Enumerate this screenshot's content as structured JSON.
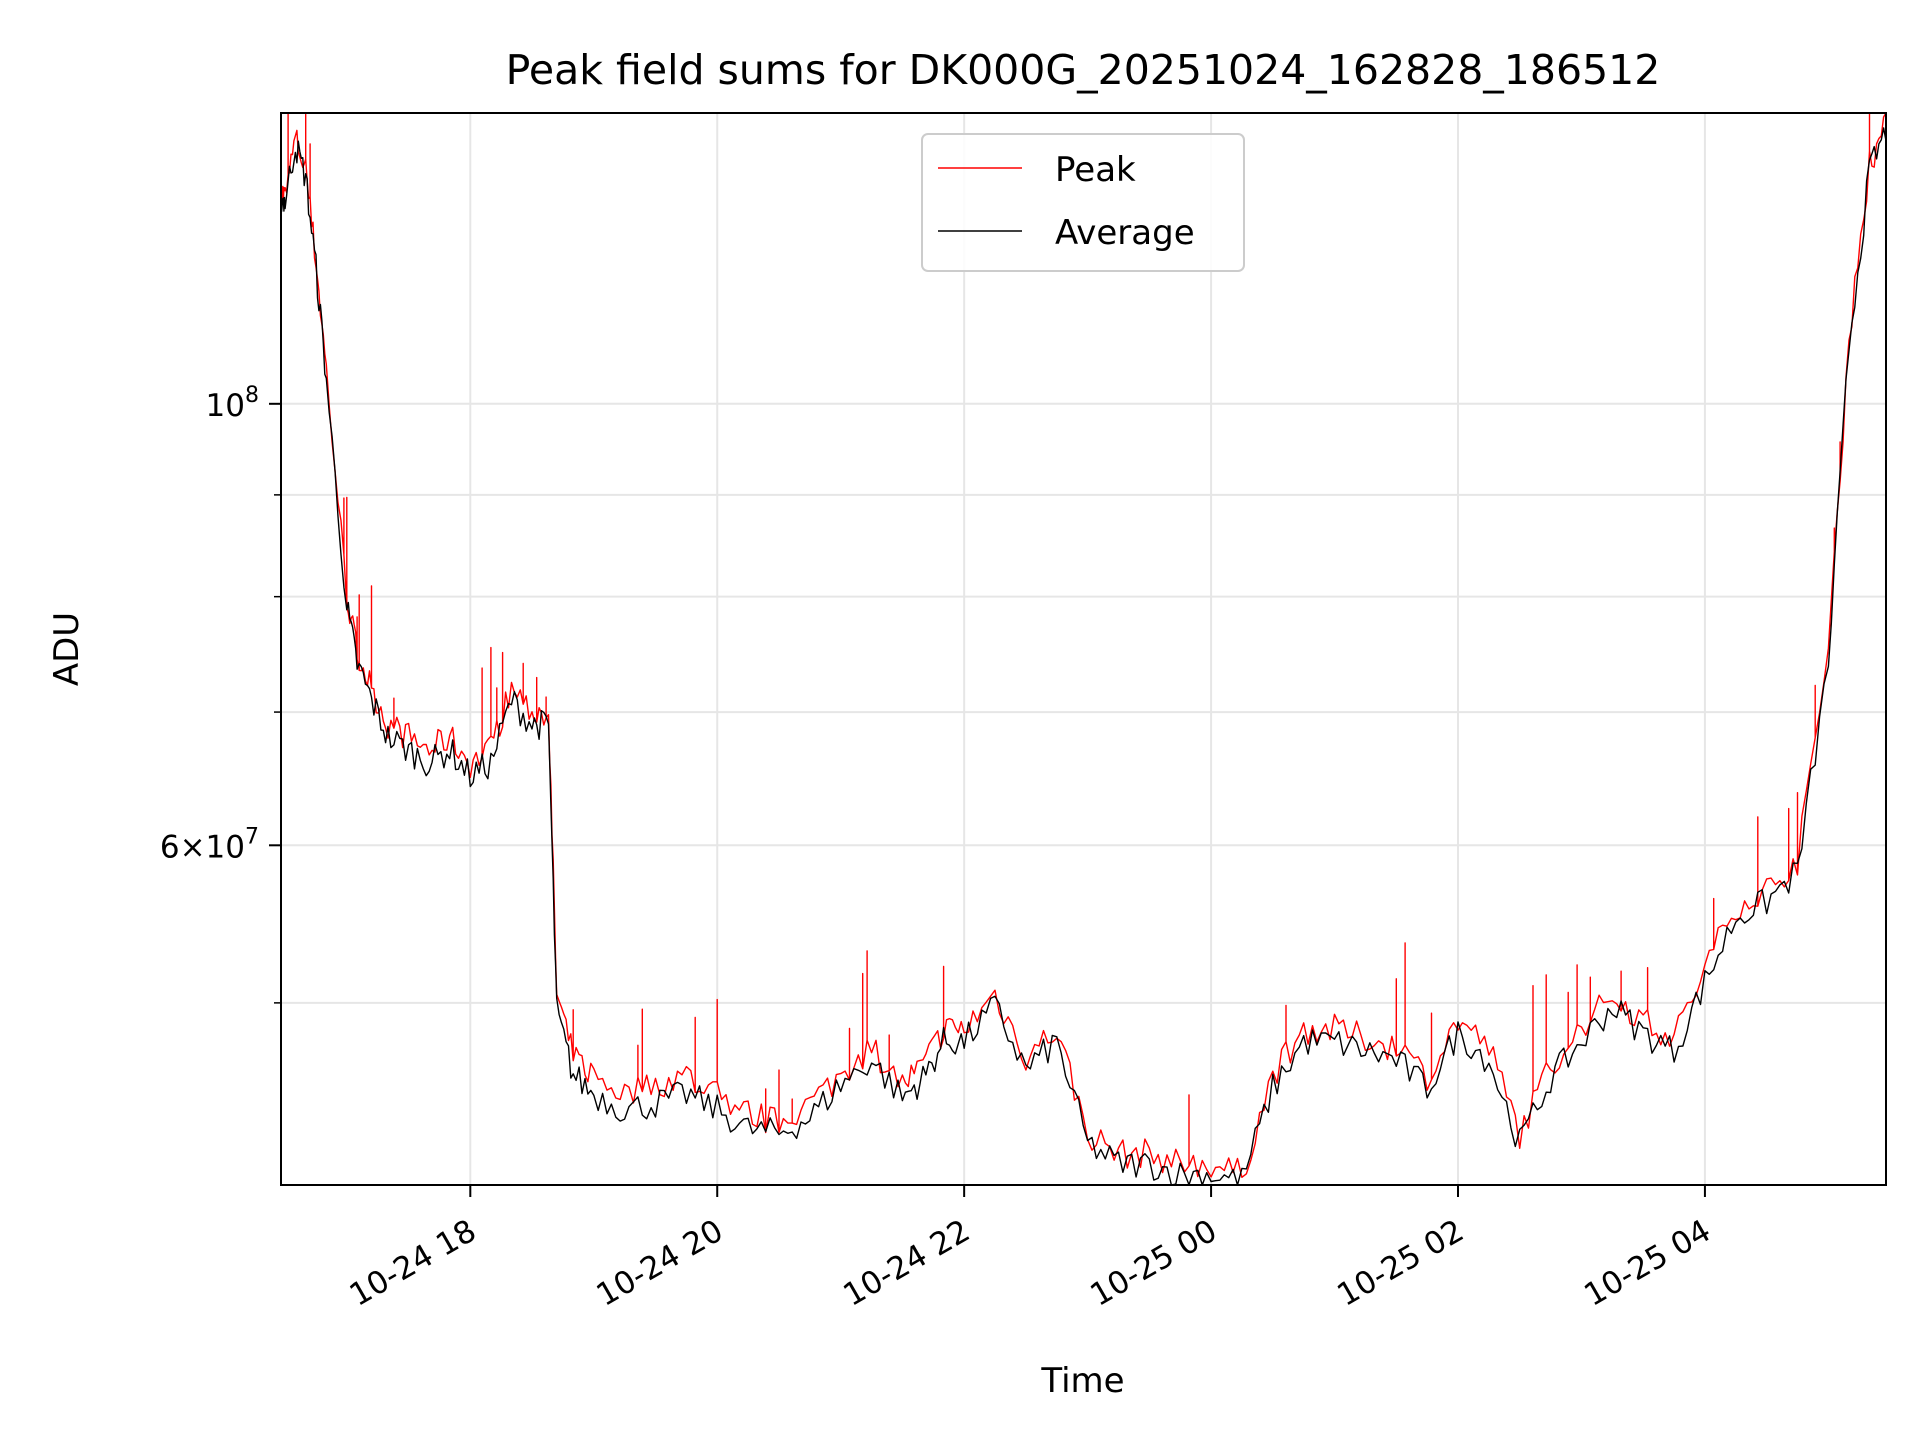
{
  "chart_data": {
    "type": "line",
    "title": "Peak field sums for DK000G_20251024_162828_186512",
    "xlabel": "Time",
    "ylabel": "ADU",
    "y_scale": "log",
    "xlim": [
      "2025-10-24 16:28",
      "2025-10-25 05:28"
    ],
    "ylim": [
      40500000,
      140000000
    ],
    "grid": true,
    "legend_position": "upper center",
    "x_ticks": [
      "10-24 18",
      "10-24 20",
      "10-24 22",
      "10-25 00",
      "10-25 02",
      "10-25 04"
    ],
    "y_tick_labels": [
      {
        "value": 100000000,
        "base": "10",
        "exp": "8"
      },
      {
        "value": 60000000,
        "mantissa": "6×",
        "base": "10",
        "exp": "7"
      }
    ],
    "y_minor_ticks": [
      50000000,
      70000000,
      80000000,
      90000000
    ],
    "x": [
      "2025-10-24 16:28",
      "2025-10-24 16:30",
      "2025-10-24 16:35",
      "2025-10-24 16:40",
      "2025-10-24 16:45",
      "2025-10-24 16:50",
      "2025-10-24 17:00",
      "2025-10-24 17:05",
      "2025-10-24 17:12",
      "2025-10-24 17:20",
      "2025-10-24 17:30",
      "2025-10-24 17:40",
      "2025-10-24 17:50",
      "2025-10-24 18:00",
      "2025-10-24 18:10",
      "2025-10-24 18:20",
      "2025-10-24 18:30",
      "2025-10-24 18:38",
      "2025-10-24 18:42",
      "2025-10-24 18:50",
      "2025-10-24 19:00",
      "2025-10-24 19:15",
      "2025-10-24 19:30",
      "2025-10-24 19:45",
      "2025-10-24 20:00",
      "2025-10-24 20:15",
      "2025-10-24 20:30",
      "2025-10-24 20:45",
      "2025-10-24 21:00",
      "2025-10-24 21:15",
      "2025-10-24 21:30",
      "2025-10-24 21:40",
      "2025-10-24 21:50",
      "2025-10-24 22:00",
      "2025-10-24 22:15",
      "2025-10-24 22:30",
      "2025-10-24 22:45",
      "2025-10-24 23:00",
      "2025-10-24 23:15",
      "2025-10-24 23:30",
      "2025-10-24 23:45",
      "2025-10-25 00:00",
      "2025-10-25 00:15",
      "2025-10-25 00:30",
      "2025-10-25 00:45",
      "2025-10-25 01:00",
      "2025-10-25 01:15",
      "2025-10-25 01:30",
      "2025-10-25 01:45",
      "2025-10-25 02:00",
      "2025-10-25 02:15",
      "2025-10-25 02:30",
      "2025-10-25 02:45",
      "2025-10-25 03:00",
      "2025-10-25 03:15",
      "2025-10-25 03:30",
      "2025-10-25 03:45",
      "2025-10-25 04:00",
      "2025-10-25 04:15",
      "2025-10-25 04:30",
      "2025-10-25 04:45",
      "2025-10-25 05:00",
      "2025-10-25 05:10",
      "2025-10-25 05:20",
      "2025-10-25 05:28"
    ],
    "series": [
      {
        "name": "Peak",
        "color": "#ff0000",
        "values": [
          128000000,
          127000000,
          136000000,
          131000000,
          118000000,
          104000000,
          80000000,
          75000000,
          72000000,
          69000000,
          68000000,
          67000000,
          68000000,
          66000000,
          67000000,
          72000000,
          70000000,
          70000000,
          50500000,
          47000000,
          46000000,
          45000000,
          45500000,
          46000000,
          45000000,
          44000000,
          43500000,
          44500000,
          46000000,
          47500000,
          45500000,
          46500000,
          48500000,
          48500000,
          50500000,
          47000000,
          48500000,
          43000000,
          42000000,
          42000000,
          41500000,
          41500000,
          41000000,
          46000000,
          48500000,
          48500000,
          48000000,
          47500000,
          46000000,
          49000000,
          47500000,
          43000000,
          46500000,
          48500000,
          50500000,
          49000000,
          48000000,
          52000000,
          56000000,
          57000000,
          59000000,
          75000000,
          108000000,
          132000000,
          138000000
        ]
      },
      {
        "name": "Average",
        "color": "#000000",
        "values": [
          127000000,
          126500000,
          135000000,
          130000000,
          117000000,
          103000000,
          79000000,
          74000000,
          71000000,
          68000000,
          67000000,
          66000000,
          67000000,
          65000000,
          66000000,
          71000000,
          69000000,
          69000000,
          49500000,
          46000000,
          45000000,
          44200000,
          44500000,
          45000000,
          44200000,
          43200000,
          43000000,
          43800000,
          45500000,
          46800000,
          44800000,
          45800000,
          47800000,
          47800000,
          49800000,
          46300000,
          47800000,
          42500000,
          41500000,
          41500000,
          41000000,
          41000000,
          40700000,
          45300000,
          47800000,
          47800000,
          47300000,
          46800000,
          45300000,
          48300000,
          46800000,
          42500000,
          45800000,
          47800000,
          49800000,
          48300000,
          47300000,
          51200000,
          55200000,
          56200000,
          58200000,
          74000000,
          107000000,
          131000000,
          137000000
        ]
      }
    ]
  }
}
